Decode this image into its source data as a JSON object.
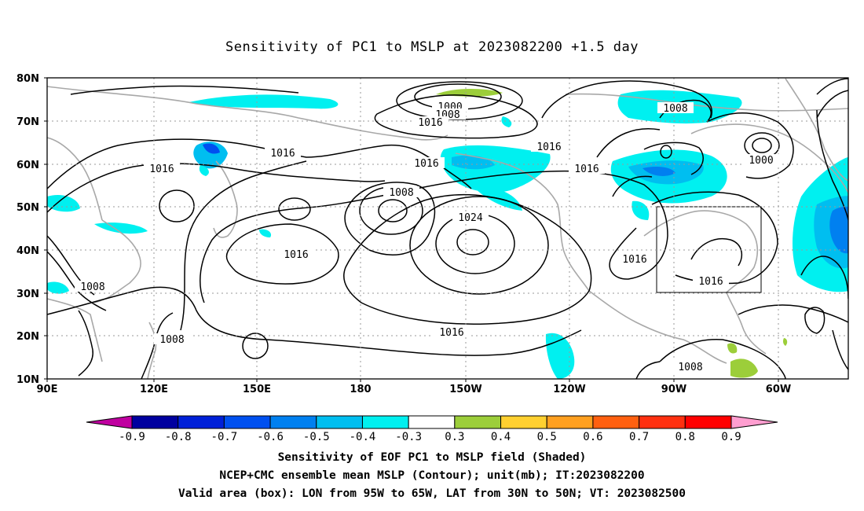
{
  "title": "Sensitivity of PC1 to MSLP at 2023082200 +1.5 day",
  "lat_labels": [
    "80N",
    "70N",
    "60N",
    "50N",
    "40N",
    "30N",
    "20N",
    "10N"
  ],
  "lon_labels": [
    "90E",
    "120E",
    "150E",
    "180",
    "150W",
    "120W",
    "90W",
    "60W"
  ],
  "contour_labels": {
    "c1000_top": "1000",
    "c1008_top": "1008",
    "c1016_top": "1016",
    "c1008_ne": "1008",
    "c1016_a": "1016",
    "c1016_b": "1016",
    "c1016_c": "1016",
    "c1016_d": "1016",
    "c1016_e": "1016",
    "c1000_e": "1000",
    "c1008_mid": "1008",
    "c1024": "1024",
    "c1016_f": "1016",
    "c1008_w": "1008",
    "c1008_sw": "1008",
    "c1016_g": "1016",
    "c1016_h": "1016",
    "c1016_south": "1016",
    "c1008_se": "1008"
  },
  "colorbar": {
    "ticks": [
      "-0.9",
      "-0.8",
      "-0.7",
      "-0.6",
      "-0.5",
      "-0.4",
      "-0.3",
      "0.3",
      "0.4",
      "0.5",
      "0.6",
      "0.7",
      "0.8",
      "0.9"
    ],
    "colors": [
      "#00009f",
      "#0020d8",
      "#0050f0",
      "#0080f0",
      "#00bef0",
      "#00f0f0",
      "#ffffff",
      "#9cce3a",
      "#ffd030",
      "#ffa020",
      "#ff6010",
      "#ff3010",
      "#ff0000"
    ],
    "left_tip_color": "#c000a0",
    "right_tip_color": "#ff9ed0"
  },
  "captions": {
    "line1": "Sensitivity of EOF PC1 to MSLP field (Shaded)",
    "line2": "NCEP+CMC ensemble mean MSLP (Contour); unit(mb); IT:2023082200",
    "line3": "Valid area (box): LON from 95W to 65W, LAT from 30N to 50N; VT: 2023082500"
  },
  "valid_box": {
    "lon_min": -95,
    "lon_max": -65,
    "lat_min": 30,
    "lat_max": 50
  }
}
